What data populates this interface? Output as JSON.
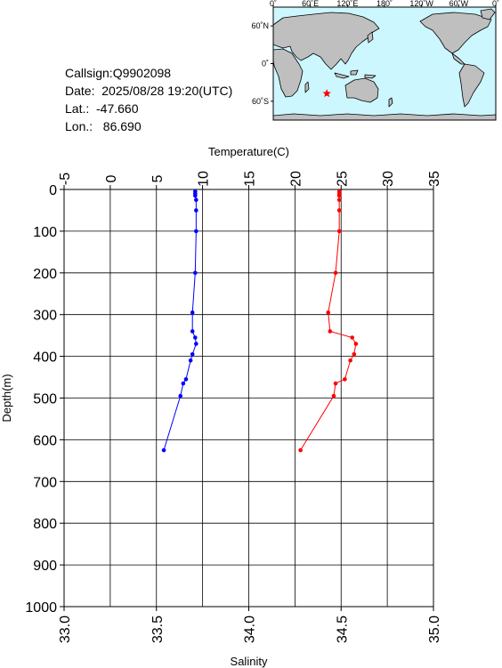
{
  "info": {
    "callsign": "Callsign:Q9902098",
    "date": "Date:  2025/08/28 19:20(UTC)",
    "lat": "Lat.:  -47.660",
    "lon": "Lon.:   86.690"
  },
  "map": {
    "lon_ticks": [
      "0˚",
      "60˚E",
      "120˚E",
      "180˚",
      "120˚W",
      "60˚W",
      "0˚"
    ],
    "lat_ticks": [
      "60˚N",
      "0˚",
      "60˚S"
    ],
    "ocean_color": "#ccf7ff",
    "land_color": "#bfbfbf",
    "marker": {
      "lon": 86.69,
      "lat": -47.66,
      "color": "#ff0000",
      "shape": "star"
    }
  },
  "chart_data": {
    "type": "line",
    "ylabel": "Depth(m)",
    "top_axis_label": "Temperature(C)",
    "bottom_axis_label": "Salinity",
    "ylim": [
      0,
      1000
    ],
    "y_inverted": true,
    "y_ticks": [
      "0",
      "100",
      "200",
      "300",
      "400",
      "500",
      "600",
      "700",
      "800",
      "900",
      "1000"
    ],
    "temperature_range": [
      -5,
      35
    ],
    "temperature_ticks": [
      "-5",
      "0",
      "5",
      "10",
      "15",
      "20",
      "25",
      "30",
      "35"
    ],
    "salinity_range": [
      33.0,
      35.0
    ],
    "salinity_ticks": [
      "33.0",
      "33.5",
      "34.0",
      "34.5",
      "35.0"
    ],
    "grid": true,
    "series": [
      {
        "name": "Temperature",
        "color": "#0000ff",
        "points": [
          [
            9.2,
            5
          ],
          [
            9.2,
            10
          ],
          [
            9.2,
            15
          ],
          [
            9.3,
            25
          ],
          [
            9.3,
            50
          ],
          [
            9.3,
            100
          ],
          [
            9.2,
            200
          ],
          [
            8.9,
            295
          ],
          [
            8.9,
            340
          ],
          [
            9.2,
            355
          ],
          [
            9.3,
            370
          ],
          [
            8.9,
            395
          ],
          [
            8.7,
            410
          ],
          [
            8.2,
            455
          ],
          [
            7.9,
            465
          ],
          [
            7.6,
            495
          ],
          [
            5.8,
            625
          ]
        ]
      },
      {
        "name": "Salinity",
        "color": "#ff0000",
        "points": [
          [
            34.49,
            5
          ],
          [
            34.49,
            10
          ],
          [
            34.49,
            15
          ],
          [
            34.49,
            25
          ],
          [
            34.49,
            50
          ],
          [
            34.49,
            100
          ],
          [
            34.47,
            200
          ],
          [
            34.43,
            295
          ],
          [
            34.44,
            340
          ],
          [
            34.56,
            355
          ],
          [
            34.58,
            370
          ],
          [
            34.57,
            395
          ],
          [
            34.55,
            410
          ],
          [
            34.52,
            455
          ],
          [
            34.47,
            465
          ],
          [
            34.46,
            495
          ],
          [
            34.28,
            625
          ]
        ]
      }
    ]
  }
}
